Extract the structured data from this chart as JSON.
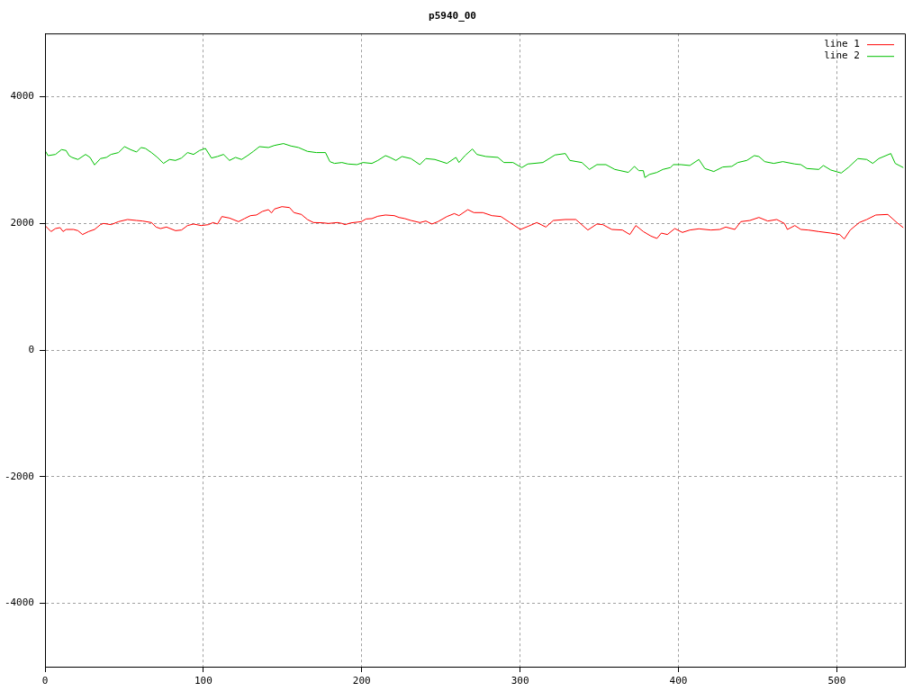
{
  "chart_data": {
    "type": "line",
    "title": "p5940_00",
    "xlim": [
      0,
      543
    ],
    "xticks": [
      0,
      100,
      200,
      300,
      400,
      500
    ],
    "ylim": [
      -5000,
      5000
    ],
    "yticks": [
      -4000,
      -2000,
      0,
      2000,
      4000
    ],
    "grid": true,
    "legend": "top right",
    "marker": "none",
    "line_style": "solid",
    "series": [
      {
        "name": "line 1",
        "color": "#ff0000",
        "x": [
          0,
          3.8,
          6.6,
          9.5,
          11.4,
          13.3,
          18,
          20.8,
          23.7,
          27.5,
          31.3,
          35,
          36.9,
          41.7,
          46.4,
          52.1,
          57.8,
          61.6,
          67.2,
          70.1,
          72.9,
          76.7,
          82.4,
          86.2,
          90,
          93.8,
          98.5,
          103.2,
          106.1,
          108.9,
          111.7,
          116.5,
          122.2,
          125.9,
          129.7,
          133.5,
          137.3,
          141.1,
          143,
          144.9,
          149.6,
          154.4,
          157.2,
          161.9,
          165.7,
          169.5,
          175.2,
          179,
          184.7,
          187.5,
          189.4,
          193.2,
          199.8,
          202.7,
          206.4,
          210.2,
          215,
          220.6,
          223.5,
          227.3,
          231.1,
          236.7,
          240.5,
          244.3,
          248.1,
          253.8,
          258.5,
          261.4,
          267,
          270.8,
          276.5,
          282.2,
          287.9,
          293.6,
          300.2,
          304.9,
          310.6,
          316.3,
          321,
          328.6,
          335.2,
          342.8,
          348.5,
          352.3,
          357.9,
          364.6,
          369.3,
          373.1,
          377.8,
          382.6,
          386.4,
          389.2,
          393,
          397.7,
          402.5,
          407.2,
          412.9,
          420.5,
          426.1,
          429.9,
          435.6,
          439.4,
          445.1,
          450.8,
          456.4,
          462.1,
          466.9,
          468.8,
          473.5,
          477.3,
          482,
          488.6,
          496.2,
          501.9,
          504.7,
          508.5,
          514.2,
          518.9,
          524.6,
          532.2,
          537.9,
          542
        ],
        "values": [
          1967,
          1872,
          1919,
          1934,
          1872,
          1905,
          1905,
          1886,
          1825,
          1872,
          1905,
          1981,
          2000,
          1981,
          2028,
          2062,
          2047,
          2038,
          2014,
          1943,
          1919,
          1943,
          1886,
          1896,
          1967,
          1991,
          1967,
          1981,
          2014,
          1991,
          2109,
          2085,
          2028,
          2076,
          2123,
          2133,
          2190,
          2218,
          2166,
          2228,
          2265,
          2251,
          2171,
          2142,
          2062,
          2014,
          2010,
          2000,
          2014,
          2000,
          1981,
          2009,
          2028,
          2071,
          2076,
          2114,
          2133,
          2123,
          2095,
          2076,
          2047,
          2014,
          2038,
          1991,
          2028,
          2109,
          2156,
          2123,
          2218,
          2171,
          2171,
          2123,
          2109,
          2014,
          1905,
          1953,
          2014,
          1943,
          2047,
          2062,
          2062,
          1896,
          1991,
          1981,
          1905,
          1896,
          1825,
          1967,
          1872,
          1801,
          1763,
          1848,
          1825,
          1919,
          1858,
          1896,
          1915,
          1896,
          1905,
          1943,
          1905,
          2028,
          2047,
          2095,
          2038,
          2062,
          2000,
          1905,
          1967,
          1905,
          1896,
          1872,
          1848,
          1825,
          1754,
          1896,
          2014,
          2062,
          2133,
          2142,
          2014,
          1934
        ]
      },
      {
        "name": "line 2",
        "color": "#00c000",
        "x": [
          0,
          1.9,
          6.6,
          10.4,
          13.3,
          15.2,
          17,
          20.8,
          25.6,
          28.4,
          31.3,
          35,
          38.8,
          41.7,
          46.4,
          50.2,
          54,
          57.8,
          60.6,
          63.4,
          67.2,
          71,
          74.8,
          78.6,
          82.4,
          86.2,
          90,
          93.8,
          97.6,
          101.3,
          105.1,
          108.9,
          112.7,
          116.5,
          120.3,
          124.1,
          127.9,
          131.6,
          135.4,
          141.1,
          144.9,
          150.6,
          155.3,
          160.1,
          165.7,
          171.4,
          177.1,
          179.9,
          182.8,
          187.5,
          191.3,
          197,
          200.8,
          206.4,
          210.2,
          215,
          217.8,
          221.6,
          225.4,
          231.1,
          236.7,
          240.5,
          246.2,
          253.8,
          259.5,
          261.4,
          265.2,
          269.9,
          272.7,
          278.4,
          286,
          289.8,
          295.5,
          301.1,
          304.9,
          314.4,
          322,
          328.6,
          331.4,
          339,
          343.8,
          348.5,
          354.2,
          359.8,
          368.4,
          372.2,
          375,
          377.8,
          378.8,
          381.6,
          386.4,
          390.2,
          394.9,
          396.8,
          401.5,
          407.2,
          412.9,
          416.7,
          422.3,
          428,
          433.7,
          437.5,
          443.2,
          447.9,
          450.8,
          454.5,
          460.2,
          465.9,
          473.5,
          477.3,
          481.1,
          488.6,
          491.5,
          496.2,
          502.8,
          507.6,
          513.3,
          518.9,
          522.7,
          526.5,
          534.1,
          536.9,
          542
        ],
        "values": [
          3152,
          3071,
          3090,
          3166,
          3152,
          3071,
          3043,
          3010,
          3090,
          3043,
          2924,
          3024,
          3043,
          3090,
          3119,
          3213,
          3166,
          3128,
          3199,
          3185,
          3119,
          3043,
          2948,
          3010,
          2995,
          3033,
          3119,
          3090,
          3152,
          3185,
          3033,
          3057,
          3090,
          2995,
          3043,
          3010,
          3071,
          3138,
          3213,
          3199,
          3232,
          3261,
          3223,
          3199,
          3138,
          3119,
          3119,
          2976,
          2948,
          2962,
          2939,
          2929,
          2962,
          2948,
          2995,
          3071,
          3043,
          2995,
          3057,
          3024,
          2929,
          3024,
          3010,
          2948,
          3043,
          2962,
          3071,
          3176,
          3090,
          3057,
          3043,
          2962,
          2962,
          2882,
          2939,
          2962,
          3081,
          3104,
          2995,
          2962,
          2853,
          2929,
          2929,
          2853,
          2806,
          2901,
          2834,
          2834,
          2725,
          2773,
          2806,
          2853,
          2882,
          2929,
          2929,
          2915,
          3010,
          2867,
          2820,
          2891,
          2901,
          2962,
          2995,
          3071,
          3057,
          2976,
          2948,
          2976,
          2939,
          2929,
          2867,
          2853,
          2915,
          2844,
          2796,
          2891,
          3024,
          3010,
          2948,
          3024,
          3104,
          2948,
          2882
        ]
      }
    ]
  }
}
